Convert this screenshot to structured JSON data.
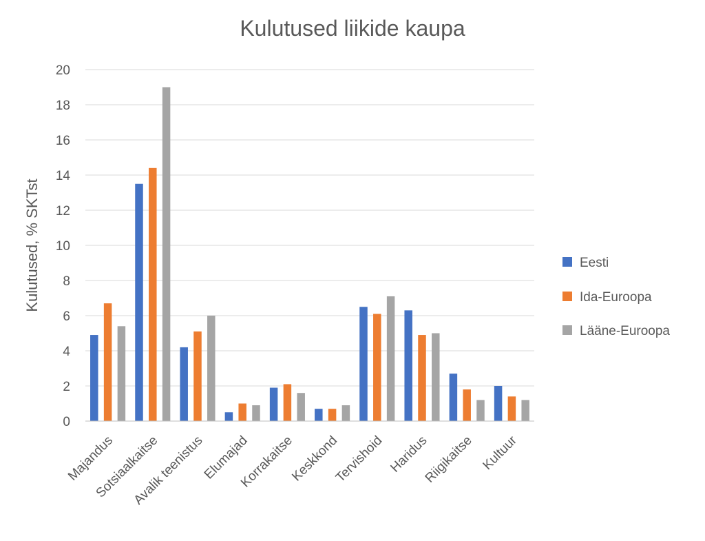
{
  "chart_data": {
    "type": "bar",
    "title": "Kulutused liikide kaupa",
    "xlabel": "",
    "ylabel": "Kulutused, % SKTst",
    "ylim": [
      0,
      20
    ],
    "yticks": [
      0,
      2,
      4,
      6,
      8,
      10,
      12,
      14,
      16,
      18,
      20
    ],
    "grid": true,
    "legend_position": "right",
    "categories": [
      "Majandus",
      "Sotsiaalkaitse",
      "Avalik teenistus",
      "Elumajad",
      "Korrakaitse",
      "Keskkond",
      "Tervishoid",
      "Haridus",
      "Riigikaitse",
      "Kultuur"
    ],
    "series": [
      {
        "name": "Eesti",
        "color": "#4472c4",
        "values": [
          4.9,
          13.5,
          4.2,
          0.5,
          1.9,
          0.7,
          6.5,
          6.3,
          2.7,
          2.0
        ]
      },
      {
        "name": "Ida-Euroopa",
        "color": "#ed7d31",
        "values": [
          6.7,
          14.4,
          5.1,
          1.0,
          2.1,
          0.7,
          6.1,
          4.9,
          1.8,
          1.4
        ]
      },
      {
        "name": "Lääne-Euroopa",
        "color": "#a5a5a5",
        "values": [
          5.4,
          19.0,
          6.0,
          0.9,
          1.6,
          0.9,
          7.1,
          5.0,
          1.2,
          1.2
        ]
      }
    ]
  }
}
